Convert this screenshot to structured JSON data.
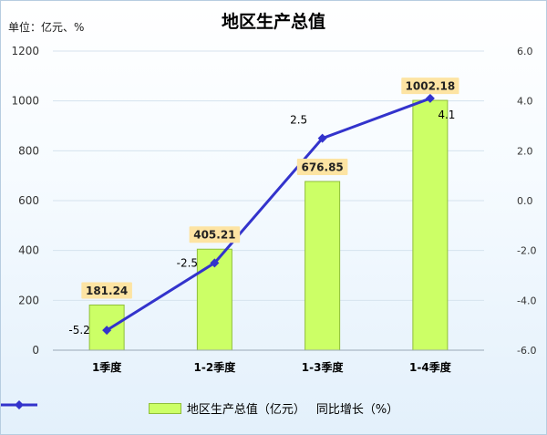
{
  "title": "地区生产总值",
  "unit_label": "单位：亿元、%",
  "chart_data": {
    "type": "bar",
    "title": "地区生产总值",
    "categories": [
      "1季度",
      "1-2季度",
      "1-3季度",
      "1-4季度"
    ],
    "series": [
      {
        "name": "地区生产总值（亿元）",
        "type": "bar",
        "axis": "left",
        "values": [
          181.24,
          405.21,
          676.85,
          1002.18
        ],
        "labels": [
          "181.24",
          "405.21",
          "676.85",
          "1002.18"
        ],
        "color": "#ccff66"
      },
      {
        "name": "同比增长（%）",
        "type": "line",
        "axis": "right",
        "values": [
          -5.2,
          -2.5,
          2.5,
          4.1
        ],
        "labels": [
          "-5.2",
          "-2.5",
          "2.5",
          "4.1"
        ],
        "color": "#3333cc"
      }
    ],
    "y_left": {
      "range": [
        0,
        1200
      ],
      "ticks": [
        "0",
        "200",
        "400",
        "600",
        "800",
        "1000",
        "1200"
      ]
    },
    "y_right": {
      "range": [
        -6,
        6
      ],
      "ticks": [
        "-6.0",
        "-4.0",
        "-2.0",
        "0.0",
        "2.0",
        "4.0",
        "6.0"
      ]
    },
    "grid": true,
    "legend_position": "bottom"
  }
}
